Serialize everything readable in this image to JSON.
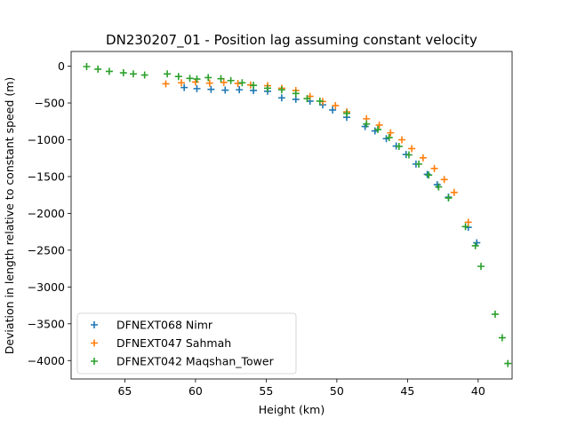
{
  "chart_data": {
    "type": "scatter",
    "title": "DN230207_01 - Position lag assuming constant velocity",
    "xlabel": "Height (km)",
    "ylabel": "Deviation in length relative to constant speed (m)",
    "xlim": [
      68.8,
      37.6
    ],
    "ylim": [
      -4250,
      200
    ],
    "x_ticks": [
      65,
      60,
      55,
      50,
      45,
      40
    ],
    "y_ticks": [
      0,
      -500,
      -1000,
      -1500,
      -2000,
      -2500,
      -3000,
      -3500,
      -4000
    ],
    "grid": false,
    "legend_position": "lower-left",
    "marker": "plus",
    "series": [
      {
        "name": "DFNEXT068 Nimr",
        "color": "#1f77b4",
        "points": [
          [
            60.8,
            -290
          ],
          [
            59.9,
            -305
          ],
          [
            58.9,
            -315
          ],
          [
            57.9,
            -325
          ],
          [
            56.9,
            -320
          ],
          [
            55.9,
            -330
          ],
          [
            54.9,
            -340
          ],
          [
            53.9,
            -430
          ],
          [
            52.9,
            -450
          ],
          [
            51.9,
            -475
          ],
          [
            51.0,
            -525
          ],
          [
            50.3,
            -595
          ],
          [
            49.3,
            -695
          ],
          [
            48.0,
            -820
          ],
          [
            47.3,
            -880
          ],
          [
            46.5,
            -985
          ],
          [
            45.8,
            -1085
          ],
          [
            45.1,
            -1200
          ],
          [
            44.4,
            -1330
          ],
          [
            43.6,
            -1470
          ],
          [
            42.9,
            -1610
          ],
          [
            42.1,
            -1780
          ],
          [
            40.7,
            -2190
          ],
          [
            40.1,
            -2400
          ]
        ]
      },
      {
        "name": "DFNEXT047 Sahmah",
        "color": "#ff7f0e",
        "points": [
          [
            62.1,
            -240
          ],
          [
            61.0,
            -225
          ],
          [
            60.0,
            -215
          ],
          [
            59.0,
            -230
          ],
          [
            58.0,
            -220
          ],
          [
            57.0,
            -235
          ],
          [
            56.1,
            -255
          ],
          [
            54.9,
            -265
          ],
          [
            53.9,
            -300
          ],
          [
            52.9,
            -330
          ],
          [
            51.9,
            -410
          ],
          [
            51.0,
            -480
          ],
          [
            50.1,
            -535
          ],
          [
            49.3,
            -620
          ],
          [
            47.9,
            -715
          ],
          [
            47.0,
            -800
          ],
          [
            46.2,
            -905
          ],
          [
            45.4,
            -1000
          ],
          [
            44.7,
            -1120
          ],
          [
            43.9,
            -1245
          ],
          [
            43.1,
            -1390
          ],
          [
            42.4,
            -1540
          ],
          [
            41.7,
            -1715
          ],
          [
            40.7,
            -2120
          ]
        ]
      },
      {
        "name": "DFNEXT042 Maqshan_Tower",
        "color": "#2ca02c",
        "points": [
          [
            67.7,
            -5
          ],
          [
            66.9,
            -40
          ],
          [
            66.1,
            -70
          ],
          [
            65.1,
            -90
          ],
          [
            64.4,
            -105
          ],
          [
            63.6,
            -120
          ],
          [
            62.0,
            -105
          ],
          [
            61.2,
            -140
          ],
          [
            60.4,
            -165
          ],
          [
            59.9,
            -175
          ],
          [
            59.1,
            -155
          ],
          [
            58.2,
            -170
          ],
          [
            57.5,
            -195
          ],
          [
            56.7,
            -225
          ],
          [
            55.9,
            -260
          ],
          [
            54.9,
            -300
          ],
          [
            53.9,
            -320
          ],
          [
            52.9,
            -370
          ],
          [
            52.1,
            -440
          ],
          [
            51.2,
            -475
          ],
          [
            49.3,
            -640
          ],
          [
            47.9,
            -785
          ],
          [
            47.1,
            -860
          ],
          [
            46.3,
            -970
          ],
          [
            45.6,
            -1090
          ],
          [
            44.9,
            -1205
          ],
          [
            44.2,
            -1330
          ],
          [
            43.5,
            -1480
          ],
          [
            42.8,
            -1640
          ],
          [
            42.1,
            -1790
          ],
          [
            40.9,
            -2180
          ],
          [
            40.2,
            -2440
          ],
          [
            39.8,
            -2720
          ],
          [
            38.8,
            -3370
          ],
          [
            38.3,
            -3690
          ],
          [
            37.9,
            -4040
          ]
        ]
      }
    ]
  }
}
